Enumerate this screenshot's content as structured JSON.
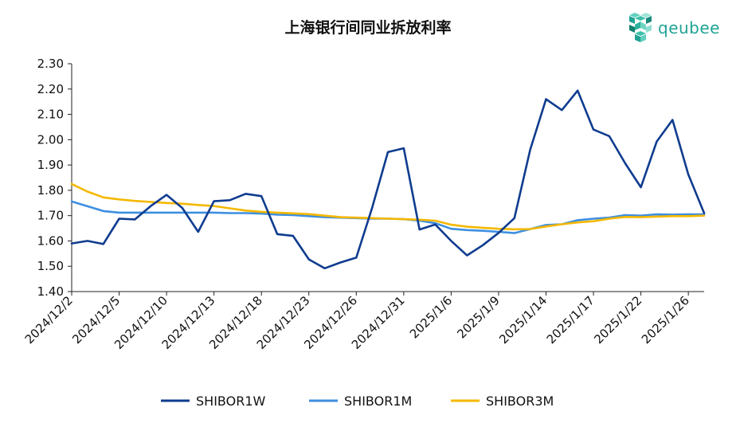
{
  "chart_data": {
    "type": "line",
    "title": "上海银行间同业拆放利率",
    "xlabel": "",
    "ylabel": "",
    "ylim": [
      1.4,
      2.3
    ],
    "y_ticks": [
      "1.40",
      "1.50",
      "1.60",
      "1.70",
      "1.80",
      "1.90",
      "2.00",
      "2.10",
      "2.20",
      "2.30"
    ],
    "x_tick_labels": [
      "2024/12/2",
      "2024/12/5",
      "2024/12/10",
      "2024/12/13",
      "2024/12/18",
      "2024/12/23",
      "2024/12/26",
      "2024/12/31",
      "2025/1/6",
      "2025/1/9",
      "2025/1/14",
      "2025/1/17",
      "2025/1/22",
      "2025/1/26"
    ],
    "x_tick_indices": [
      0,
      3,
      6,
      9,
      12,
      15,
      18,
      21,
      24,
      27,
      30,
      33,
      36,
      39
    ],
    "grid": false,
    "legend_position": "bottom",
    "series": [
      {
        "name": "SHIBOR1W",
        "color": "#0f3c8f",
        "values": [
          1.59,
          1.6,
          1.588,
          1.688,
          1.685,
          1.738,
          1.782,
          1.73,
          1.636,
          1.757,
          1.761,
          1.786,
          1.777,
          1.627,
          1.62,
          1.527,
          1.492,
          1.515,
          1.534,
          1.73,
          1.951,
          1.966,
          1.645,
          1.665,
          1.6,
          1.543,
          1.583,
          1.632,
          1.69,
          1.96,
          2.16,
          2.117,
          2.194,
          2.04,
          2.014,
          1.907,
          1.812,
          1.993,
          2.078,
          1.863,
          1.71
        ]
      },
      {
        "name": "SHIBOR1M",
        "color": "#3d8fe0",
        "values": [
          1.756,
          1.737,
          1.718,
          1.712,
          1.712,
          1.712,
          1.712,
          1.712,
          1.712,
          1.712,
          1.71,
          1.71,
          1.708,
          1.704,
          1.702,
          1.698,
          1.694,
          1.692,
          1.69,
          1.688,
          1.688,
          1.686,
          1.68,
          1.67,
          1.648,
          1.643,
          1.64,
          1.636,
          1.631,
          1.647,
          1.663,
          1.666,
          1.682,
          1.688,
          1.692,
          1.702,
          1.7,
          1.705,
          1.704,
          1.705,
          1.705
        ]
      },
      {
        "name": "SHIBOR3M",
        "color": "#f5b800",
        "values": [
          1.825,
          1.795,
          1.772,
          1.764,
          1.758,
          1.754,
          1.75,
          1.747,
          1.742,
          1.738,
          1.729,
          1.72,
          1.715,
          1.712,
          1.709,
          1.706,
          1.7,
          1.694,
          1.692,
          1.69,
          1.688,
          1.686,
          1.684,
          1.68,
          1.664,
          1.656,
          1.652,
          1.648,
          1.646,
          1.647,
          1.657,
          1.666,
          1.673,
          1.678,
          1.688,
          1.695,
          1.694,
          1.696,
          1.698,
          1.698,
          1.7
        ]
      }
    ]
  },
  "logo": {
    "text": "qeubee",
    "color": "#1fa394"
  }
}
